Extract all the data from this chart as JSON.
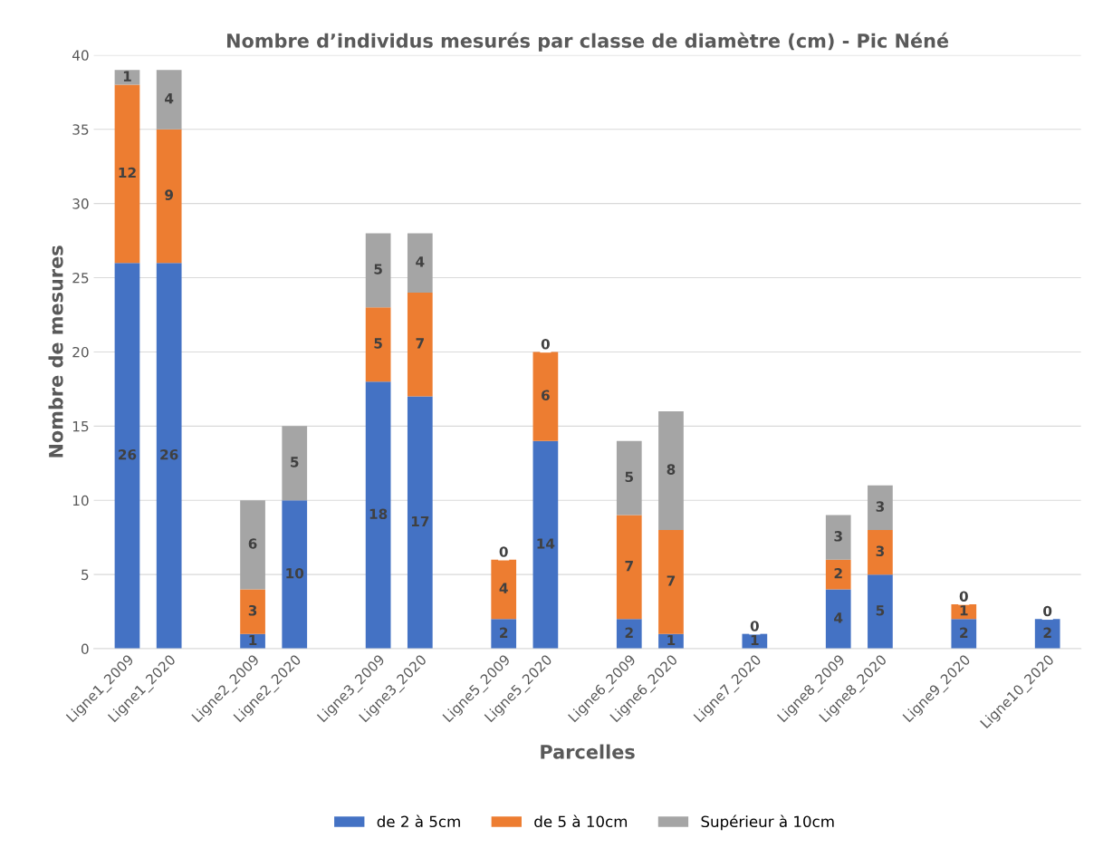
{
  "chart_data": {
    "type": "bar",
    "title": "Nombre d’individus mesurés par classe de diamètre (cm) - Pic Néné",
    "xlabel": "Parcelles",
    "ylabel": "Nombre de mesures",
    "categories": [
      "Ligne1_2009",
      "Ligne1_2020",
      null,
      "Ligne2_2009",
      "Ligne2_2020",
      null,
      "Ligne3_2009",
      "Ligne3_2020",
      null,
      "Ligne5_2009",
      "Ligne5_2020",
      null,
      "Ligne6_2009",
      "Ligne6_2020",
      null,
      "Ligne7_2020",
      null,
      "Ligne8_2009",
      "Ligne8_2020",
      null,
      "Ligne9_2020",
      null,
      "Ligne10_2020"
    ],
    "stacked": true,
    "series": [
      {
        "name": "de 2 à 5cm",
        "color": "#4472c4",
        "values": [
          26,
          26,
          null,
          1,
          10,
          null,
          18,
          17,
          null,
          2,
          14,
          null,
          2,
          1,
          null,
          1,
          null,
          4,
          5,
          null,
          2,
          null,
          2
        ],
        "value_labels": [
          "26",
          "26",
          null,
          "1",
          "10",
          null,
          "18",
          "17",
          null,
          "2",
          "14",
          null,
          "2",
          "1",
          null,
          "1",
          null,
          "4",
          "5",
          null,
          "2",
          null,
          "2"
        ]
      },
      {
        "name": "de 5 à 10cm",
        "color": "#ed7d31",
        "values": [
          12,
          9,
          null,
          3,
          null,
          null,
          5,
          7,
          null,
          4,
          6,
          null,
          7,
          7,
          null,
          0,
          null,
          2,
          3,
          null,
          1,
          null,
          0
        ],
        "value_labels": [
          "12",
          "9",
          null,
          "3",
          null,
          null,
          "5",
          "7",
          null,
          "4",
          "6",
          null,
          "7",
          "7",
          null,
          "0",
          null,
          "2",
          "3",
          null,
          "1",
          null,
          "0"
        ]
      },
      {
        "name": "Supérieur à 10cm",
        "color": "#a5a5a5",
        "values": [
          1,
          4,
          null,
          6,
          5,
          null,
          5,
          4,
          null,
          0,
          0,
          null,
          5,
          8,
          null,
          null,
          null,
          3,
          3,
          null,
          0,
          null,
          null
        ],
        "value_labels": [
          "1",
          "4",
          null,
          "6",
          "5",
          null,
          "5",
          "4",
          null,
          "0",
          "0",
          null,
          "5",
          "8",
          null,
          null,
          null,
          "3",
          "3",
          null,
          "0",
          null,
          null
        ]
      }
    ],
    "ylim": [
      0,
      40
    ],
    "yticks": [
      0,
      5,
      10,
      15,
      20,
      25,
      30,
      35,
      40
    ],
    "grid": "y",
    "legend": "bottom"
  }
}
